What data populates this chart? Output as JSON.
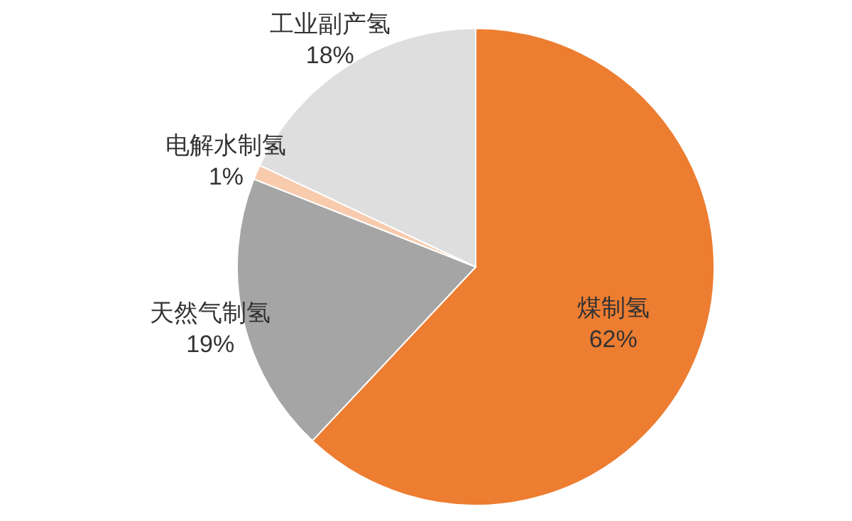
{
  "chart_data": {
    "type": "pie",
    "categories": [
      "煤制氢",
      "天然气制氢",
      "电解水制氢",
      "工业副产氢"
    ],
    "values": [
      62,
      19,
      1,
      18
    ],
    "colors": [
      "#ed7d31",
      "#a5a5a5",
      "#f8cbad",
      "#dedede"
    ],
    "value_labels": [
      "62%",
      "19%",
      "1%",
      "18%"
    ],
    "legend": false
  }
}
